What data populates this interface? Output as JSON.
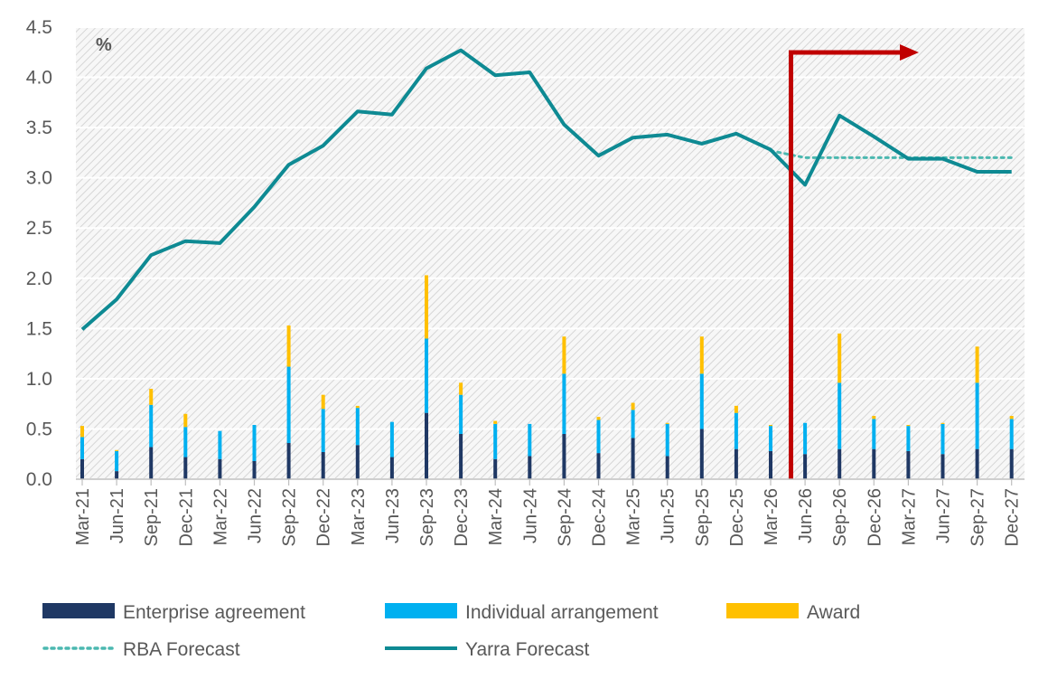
{
  "chart_data": {
    "type": "bar",
    "unit_label": "%",
    "ylim": [
      0,
      4.5
    ],
    "yticks": [
      "0.0",
      "0.5",
      "1.0",
      "1.5",
      "2.0",
      "2.5",
      "3.0",
      "3.5",
      "4.0",
      "4.5"
    ],
    "grid": true,
    "legend_position": "bottom",
    "categories": [
      "Mar-21",
      "Jun-21",
      "Sep-21",
      "Dec-21",
      "Mar-22",
      "Jun-22",
      "Sep-22",
      "Dec-22",
      "Mar-23",
      "Jun-23",
      "Sep-23",
      "Dec-23",
      "Mar-24",
      "Jun-24",
      "Sep-24",
      "Dec-24",
      "Mar-25",
      "Jun-25",
      "Sep-25",
      "Dec-25",
      "Mar-26",
      "Jun-26",
      "Sep-26",
      "Dec-26",
      "Mar-27",
      "Jun-27",
      "Sep-27",
      "Dec-27"
    ],
    "series": [
      {
        "name": "Enterprise agreement",
        "kind": "bar",
        "color": "#1f3864",
        "values": [
          0.2,
          0.08,
          0.32,
          0.22,
          0.2,
          0.18,
          0.36,
          0.27,
          0.34,
          0.22,
          0.66,
          0.45,
          0.2,
          0.23,
          0.45,
          0.26,
          0.41,
          0.23,
          0.5,
          0.3,
          0.28,
          0.25,
          0.3,
          0.3,
          0.28,
          0.25,
          0.3,
          0.3
        ]
      },
      {
        "name": "Individual arrangement",
        "kind": "bar",
        "color": "#00b0f0",
        "values": [
          0.22,
          0.2,
          0.42,
          0.3,
          0.28,
          0.36,
          0.76,
          0.43,
          0.37,
          0.35,
          0.74,
          0.39,
          0.35,
          0.32,
          0.6,
          0.33,
          0.28,
          0.32,
          0.55,
          0.36,
          0.25,
          0.31,
          0.66,
          0.3,
          0.25,
          0.3,
          0.66,
          0.3
        ]
      },
      {
        "name": "Award",
        "kind": "bar",
        "color": "#ffc000",
        "values": [
          0.11,
          0.01,
          0.16,
          0.13,
          0.0,
          0.0,
          0.41,
          0.14,
          0.02,
          0.0,
          0.63,
          0.12,
          0.03,
          0.0,
          0.37,
          0.03,
          0.07,
          0.01,
          0.37,
          0.07,
          0.01,
          0.0,
          0.49,
          0.03,
          0.01,
          0.01,
          0.36,
          0.03
        ]
      },
      {
        "name": "RBA Forecast",
        "kind": "line-dotted",
        "color": "#4bb8b0",
        "x": [
          "Mar-26",
          "Jun-26",
          "Sep-26",
          "Dec-26",
          "Mar-27",
          "Jun-27",
          "Sep-27",
          "Dec-27"
        ],
        "values": [
          3.27,
          3.2,
          3.2,
          3.2,
          3.2,
          3.2,
          3.2,
          3.2
        ]
      },
      {
        "name": "Yarra Forecast",
        "kind": "line",
        "color": "#0e8a93",
        "values": [
          1.49,
          1.79,
          2.23,
          2.37,
          2.35,
          2.71,
          3.13,
          3.32,
          3.66,
          3.63,
          4.09,
          4.27,
          4.02,
          4.05,
          3.53,
          3.22,
          3.4,
          3.43,
          3.34,
          3.44,
          3.28,
          2.93,
          3.62,
          3.41,
          3.19,
          3.19,
          3.06,
          3.06
        ]
      }
    ],
    "forecast_marker": {
      "start_after": "Mar-26",
      "color": "#c00000"
    }
  }
}
